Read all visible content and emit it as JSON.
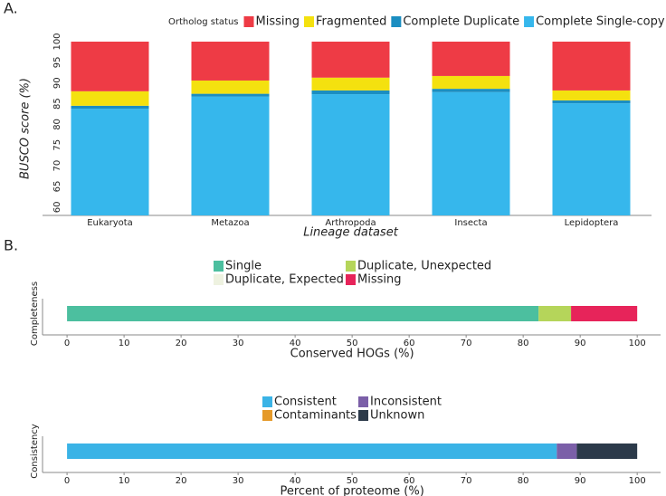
{
  "chart_data": [
    {
      "type": "bar",
      "panel_label": "A.",
      "ylabel": "BUSCO score (%)",
      "xlabel": "Lineage dataset",
      "legend_title": "Ortholog status",
      "categories": [
        "Eukaryota",
        "Metazoa",
        "Arthropoda",
        "Insecta",
        "Lepidoptera"
      ],
      "series": [
        {
          "name": "Complete Single-copy",
          "color": "#36b7ec",
          "values": [
            83.8,
            86.7,
            87.3,
            87.8,
            85.1
          ]
        },
        {
          "name": "Complete Duplicate",
          "color": "#1b8ec1",
          "values": [
            0.7,
            0.7,
            0.9,
            0.8,
            0.7
          ]
        },
        {
          "name": "Fragmented",
          "color": "#f4e10f",
          "values": [
            3.5,
            3.2,
            3.1,
            3.1,
            2.4
          ]
        },
        {
          "name": "Missing",
          "color": "#ee3b45",
          "values": [
            12.0,
            9.4,
            8.7,
            8.3,
            11.8
          ]
        }
      ],
      "ylim": [
        58,
        100
      ],
      "yticks": [
        60,
        65,
        70,
        75,
        80,
        85,
        90,
        95,
        100
      ]
    },
    {
      "type": "hbar",
      "panel_label": "B.",
      "ylabel": "Completeness",
      "xlabel": "Conserved HOGs (%)",
      "series": [
        {
          "name": "Single",
          "color": "#4cbf9f",
          "values": [
            82.7
          ]
        },
        {
          "name": "Duplicate, Unexpected",
          "color": "#b5d55a",
          "values": [
            5.7
          ]
        },
        {
          "name": "Duplicate, Expected",
          "color": "#eef2e0",
          "values": [
            0
          ]
        },
        {
          "name": "Missing",
          "color": "#e7245a",
          "values": [
            11.6
          ]
        }
      ],
      "xlim": [
        -4.3,
        104.1
      ],
      "xticks": [
        0,
        10,
        20,
        30,
        40,
        50,
        60,
        70,
        80,
        90,
        100
      ]
    },
    {
      "type": "hbar",
      "ylabel": "Consistency",
      "xlabel": "Percent of proteome (%)",
      "series": [
        {
          "name": "Consistent",
          "color": "#3ab3e6",
          "values": [
            85.9
          ]
        },
        {
          "name": "Inconsistent",
          "color": "#7b5fa8",
          "values": [
            3.5
          ]
        },
        {
          "name": "Contaminants",
          "color": "#e59a2a",
          "values": [
            0
          ]
        },
        {
          "name": "Unknown",
          "color": "#2c3a4a",
          "values": [
            10.6
          ]
        }
      ],
      "xlim": [
        -4.3,
        104.1
      ],
      "xticks": [
        0,
        10,
        20,
        30,
        40,
        50,
        60,
        70,
        80,
        90,
        100
      ]
    }
  ]
}
